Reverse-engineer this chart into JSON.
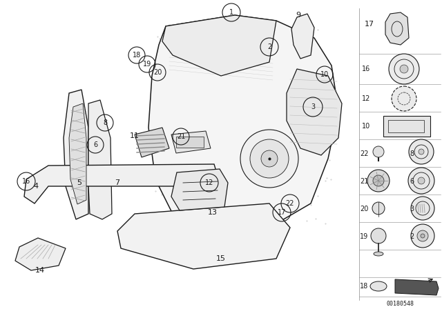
{
  "bg_color": "#ffffff",
  "line_color": "#1a1a1a",
  "diagram_num": "00180548",
  "figsize": [
    6.4,
    4.48
  ],
  "dpi": 100
}
